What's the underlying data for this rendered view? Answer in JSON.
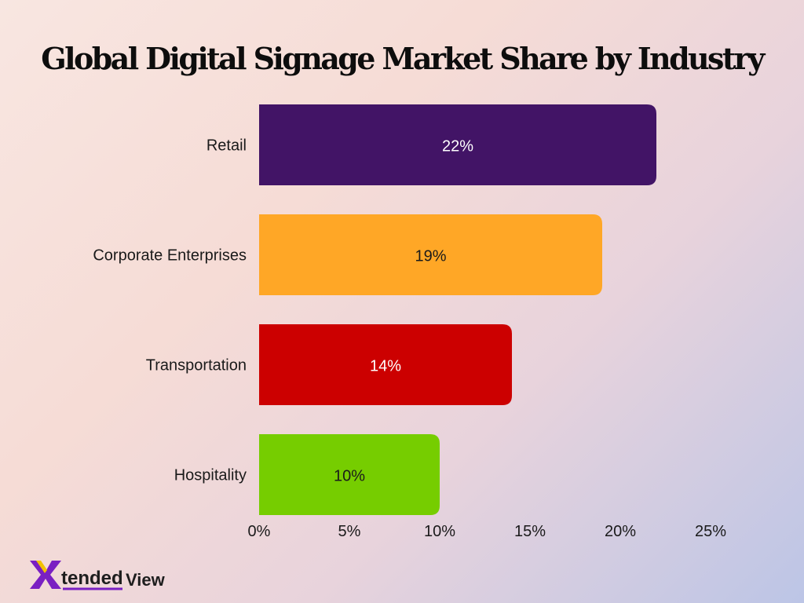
{
  "chart_data": {
    "type": "bar",
    "orientation": "horizontal",
    "title": "Global Digital Signage Market Share by Industry",
    "categories": [
      "Retail",
      "Corporate Enterprises",
      "Transportation",
      "Hospitality"
    ],
    "values": [
      22,
      19,
      14,
      10
    ],
    "value_labels": [
      "22%",
      "19%",
      "14%",
      "10%"
    ],
    "colors": [
      "#421466",
      "#ffa726",
      "#cc0000",
      "#76cd00"
    ],
    "label_colors": [
      "#ffffff",
      "#1a1a1a",
      "#ffffff",
      "#1a1a1a"
    ],
    "xlim": [
      0,
      25
    ],
    "xticks": [
      0,
      5,
      10,
      15,
      20,
      25
    ],
    "xtick_labels": [
      "0%",
      "5%",
      "10%",
      "15%",
      "20%",
      "25%"
    ],
    "grid": false,
    "legend": "none",
    "xlabel": "",
    "ylabel": ""
  },
  "logo": {
    "text_tended": "tended",
    "text_view": "View",
    "accent": "#7a1fc2",
    "dark": "#1e1e1e"
  }
}
